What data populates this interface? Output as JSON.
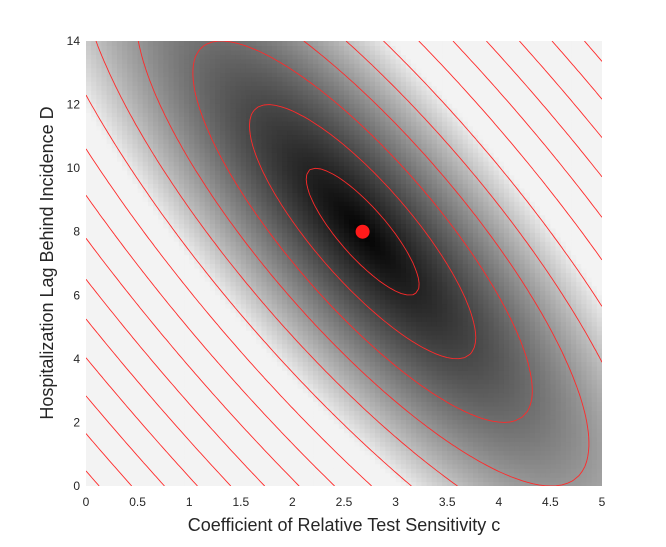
{
  "chart_data": {
    "type": "heatmap",
    "subtype": "contour-surface",
    "title": "",
    "xlabel": "Coefficient of Relative Test Sensitivity c",
    "ylabel": "Hospitalization Lag Behind Incidence D",
    "xlim": [
      0,
      5
    ],
    "ylim": [
      0,
      14
    ],
    "x_ticks": [
      "0",
      "0.5",
      "1",
      "1.5",
      "2",
      "2.5",
      "3",
      "3.5",
      "4",
      "4.5",
      "5"
    ],
    "y_ticks": [
      "0",
      "2",
      "4",
      "6",
      "8",
      "10",
      "12",
      "14"
    ],
    "colormap": "grayscale (black = minimum, white = high)",
    "contour_line_color": "#ff2a2a",
    "marker_color": "#ff1a1a",
    "minimum_point": {
      "x": 2.68,
      "y": 8.0
    },
    "grid": false
  }
}
